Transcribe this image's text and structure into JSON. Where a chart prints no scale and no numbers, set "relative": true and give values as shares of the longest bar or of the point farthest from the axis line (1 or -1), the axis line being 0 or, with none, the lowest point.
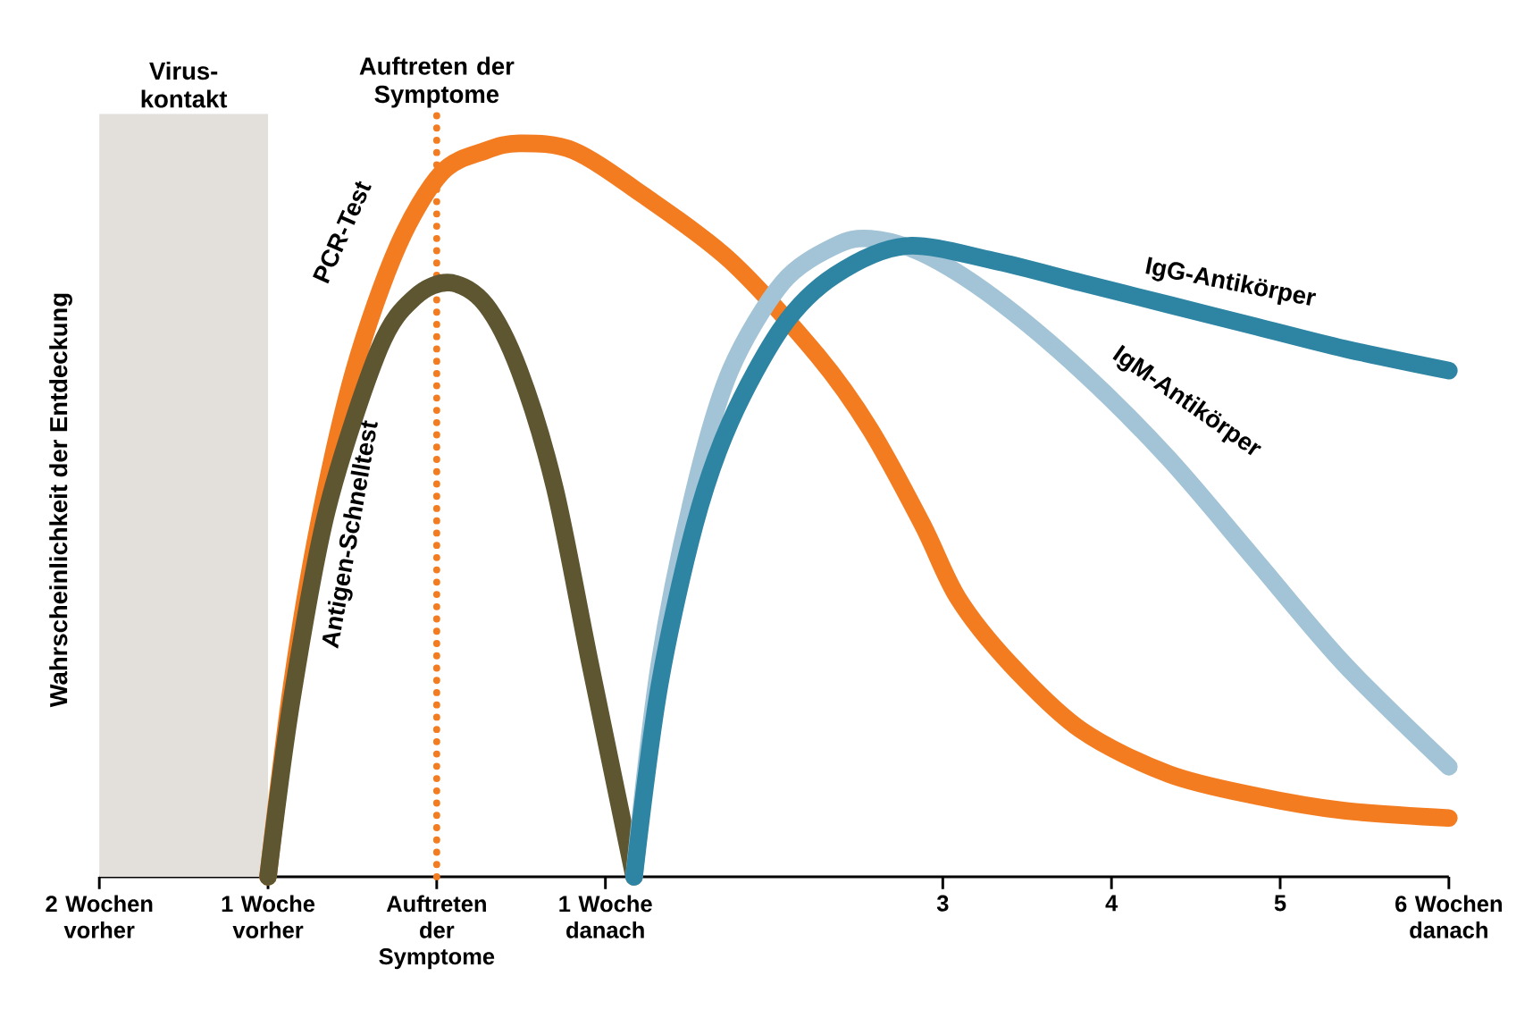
{
  "chart_data": {
    "type": "line",
    "relative": true,
    "ylabel": "Wahrscheinlichkeit der Entdeckung",
    "xlim": [
      -2,
      6
    ],
    "xticks": [
      {
        "value": -2,
        "label": "2 Wochen vorher"
      },
      {
        "value": -1,
        "label": "1 Woche vorher"
      },
      {
        "value": 0,
        "label": "Auftreten der Symptome"
      },
      {
        "value": 1,
        "label": "1 Woche danach"
      },
      3,
      4,
      5,
      {
        "value": 6,
        "label": "6 Wochen danach"
      }
    ],
    "series": [
      {
        "name": "PCR-Test",
        "color": "#f47c20",
        "x": [
          -1.0,
          -0.86,
          -0.7,
          -0.49,
          -0.23,
          0.03,
          0.29,
          0.49,
          0.81,
          1.22,
          1.74,
          2.26,
          2.57,
          2.88,
          3.09,
          3.4,
          3.82,
          4.34,
          4.86,
          5.38,
          6.0
        ],
        "values": [
          0,
          0.26,
          0.48,
          0.69,
          0.86,
          0.96,
          0.99,
          1,
          0.99,
          0.93,
          0.84,
          0.71,
          0.61,
          0.48,
          0.38,
          0.29,
          0.2,
          0.14,
          0.11,
          0.09,
          0.08
        ]
      },
      {
        "name": "Antigen-Schnelltest",
        "color": "#5e5631",
        "x": [
          -1.0,
          -0.86,
          -0.65,
          -0.34,
          -0.13,
          0.08,
          0.29,
          0.49,
          0.7,
          0.91,
          1.17
        ],
        "values": [
          0,
          0.24,
          0.5,
          0.72,
          0.79,
          0.81,
          0.78,
          0.69,
          0.53,
          0.29,
          0
        ]
      },
      {
        "name": "IgM-Antikörper",
        "color": "#a3c4d6",
        "x": [
          1.17,
          1.32,
          1.53,
          1.74,
          2.05,
          2.36,
          2.57,
          2.88,
          3.3,
          3.82,
          4.34,
          4.86,
          5.38,
          6.0
        ],
        "values": [
          0,
          0.29,
          0.53,
          0.69,
          0.81,
          0.86,
          0.87,
          0.85,
          0.79,
          0.69,
          0.57,
          0.43,
          0.29,
          0.15
        ]
      },
      {
        "name": "IgG-Antikörper",
        "color": "#2e84a3",
        "x": [
          1.17,
          1.32,
          1.53,
          1.74,
          2.05,
          2.36,
          2.78,
          3.3,
          3.82,
          4.34,
          4.86,
          5.38,
          6.0
        ],
        "values": [
          0,
          0.26,
          0.48,
          0.62,
          0.75,
          0.82,
          0.86,
          0.84,
          0.81,
          0.78,
          0.75,
          0.72,
          0.69
        ]
      }
    ],
    "bands": [
      {
        "axis": "x",
        "from": -2,
        "to": -1,
        "label": "Virus-kontakt",
        "color": "#e3e0dc"
      }
    ],
    "ref_lines": [
      {
        "axis": "x",
        "value": 0,
        "label": "Auftreten der Symptome",
        "color": "#f47c20",
        "line_style": "dotted"
      }
    ],
    "grid": false
  }
}
